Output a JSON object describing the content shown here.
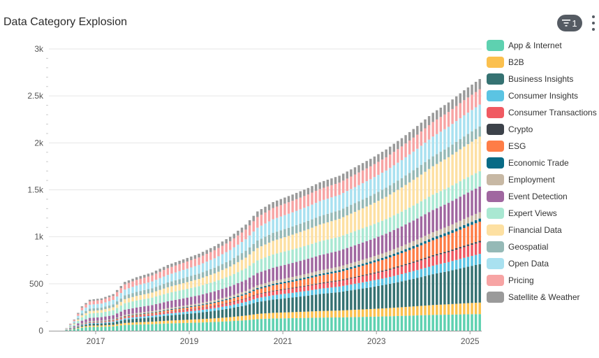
{
  "header": {
    "title": "Data Category Explosion",
    "filter_count": "1"
  },
  "chart_data": {
    "type": "bar",
    "stacked": true,
    "title": "Data Category Explosion",
    "xlabel": "",
    "ylabel": "",
    "ylim": [
      0,
      3000
    ],
    "yticks": [
      {
        "value": 0,
        "label": "0"
      },
      {
        "value": 500,
        "label": "500"
      },
      {
        "value": 1000,
        "label": "1k"
      },
      {
        "value": 1500,
        "label": "1.5k"
      },
      {
        "value": 2000,
        "label": "2k"
      },
      {
        "value": 2500,
        "label": "2.5k"
      },
      {
        "value": 3000,
        "label": "3k"
      }
    ],
    "xticks": [
      "2017",
      "2019",
      "2021",
      "2023",
      "2025"
    ],
    "x_range": [
      "2016-01",
      "2025-03"
    ],
    "bar_period": "1 month",
    "grid": true,
    "legend_position": "right",
    "totals": [
      {
        "date": "2016-05",
        "total": 30
      },
      {
        "date": "2016-07",
        "total": 120
      },
      {
        "date": "2016-09",
        "total": 260
      },
      {
        "date": "2016-11",
        "total": 330
      },
      {
        "date": "2017-02",
        "total": 345
      },
      {
        "date": "2017-05",
        "total": 390
      },
      {
        "date": "2017-08",
        "total": 520
      },
      {
        "date": "2017-11",
        "total": 570
      },
      {
        "date": "2018-03",
        "total": 620
      },
      {
        "date": "2018-07",
        "total": 700
      },
      {
        "date": "2018-11",
        "total": 760
      },
      {
        "date": "2019-03",
        "total": 820
      },
      {
        "date": "2019-07",
        "total": 900
      },
      {
        "date": "2019-11",
        "total": 1000
      },
      {
        "date": "2020-03",
        "total": 1130
      },
      {
        "date": "2020-06",
        "total": 1270
      },
      {
        "date": "2020-10",
        "total": 1370
      },
      {
        "date": "2021-03",
        "total": 1450
      },
      {
        "date": "2021-07",
        "total": 1520
      },
      {
        "date": "2021-10",
        "total": 1580
      },
      {
        "date": "2022-03",
        "total": 1650
      },
      {
        "date": "2022-07",
        "total": 1740
      },
      {
        "date": "2022-11",
        "total": 1830
      },
      {
        "date": "2023-03",
        "total": 1930
      },
      {
        "date": "2023-07",
        "total": 2050
      },
      {
        "date": "2023-11",
        "total": 2180
      },
      {
        "date": "2024-03",
        "total": 2320
      },
      {
        "date": "2024-07",
        "total": 2430
      },
      {
        "date": "2024-11",
        "total": 2560
      },
      {
        "date": "2025-03",
        "total": 2680
      }
    ],
    "series": [
      {
        "name": "App & Internet",
        "color": "#5ed1b0",
        "share_start": 0.12,
        "share_end": 0.065
      },
      {
        "name": "B2B",
        "color": "#fbc04e",
        "share_start": 0.04,
        "share_end": 0.045
      },
      {
        "name": "Business Insights",
        "color": "#357272",
        "share_start": 0.05,
        "share_end": 0.15
      },
      {
        "name": "Consumer Insights",
        "color": "#5bc4e3",
        "share_start": 0.025,
        "share_end": 0.04
      },
      {
        "name": "Consumer Transactions",
        "color": "#f05a62",
        "share_start": 0.015,
        "share_end": 0.045
      },
      {
        "name": "Crypto",
        "color": "#3c424a",
        "share_start": 0.004,
        "share_end": 0.006
      },
      {
        "name": "ESG",
        "color": "#fe7d47",
        "share_start": 0.004,
        "share_end": 0.075
      },
      {
        "name": "Economic Trade",
        "color": "#086b86",
        "share_start": 0.01,
        "share_end": 0.012
      },
      {
        "name": "Employment",
        "color": "#c7b8a4",
        "share_start": 0.02,
        "share_end": 0.025
      },
      {
        "name": "Event Detection",
        "color": "#a067a0",
        "share_start": 0.1,
        "share_end": 0.1
      },
      {
        "name": "Expert Views",
        "color": "#a9e8d2",
        "share_start": 0.14,
        "share_end": 0.06
      },
      {
        "name": "Financial Data",
        "color": "#fde0a2",
        "share_start": 0.07,
        "share_end": 0.135
      },
      {
        "name": "Geospatial",
        "color": "#95b9b6",
        "share_start": 0.08,
        "share_end": 0.04
      },
      {
        "name": "Open Data",
        "color": "#a9e1f0",
        "share_start": 0.12,
        "share_end": 0.085
      },
      {
        "name": "Pricing",
        "color": "#f7a4a4",
        "share_start": 0.11,
        "share_end": 0.06
      },
      {
        "name": "Satellite & Weather",
        "color": "#9a9a9a",
        "share_start": 0.05,
        "share_end": 0.04
      }
    ]
  }
}
